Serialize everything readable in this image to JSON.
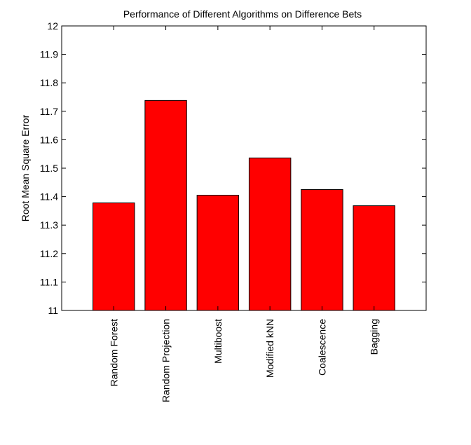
{
  "chart_data": {
    "type": "bar",
    "title": "Performance of Different Algorithms on Difference Bets",
    "xlabel": "",
    "ylabel": "Root Mean Square Error",
    "categories": [
      "Random Forest",
      "Random Projection",
      "Multiboost",
      "Modified kNN",
      "Coalescence",
      "Bagging"
    ],
    "values": [
      11.378,
      11.738,
      11.405,
      11.536,
      11.425,
      11.368
    ],
    "ylim": [
      11,
      12
    ],
    "yticks": [
      "11",
      "11.1",
      "11.2",
      "11.3",
      "11.4",
      "11.5",
      "11.6",
      "11.7",
      "11.8",
      "11.9",
      "12"
    ],
    "grid": false,
    "legend": "none",
    "bar_color": "#ff0000",
    "edge_color": "#000000"
  }
}
